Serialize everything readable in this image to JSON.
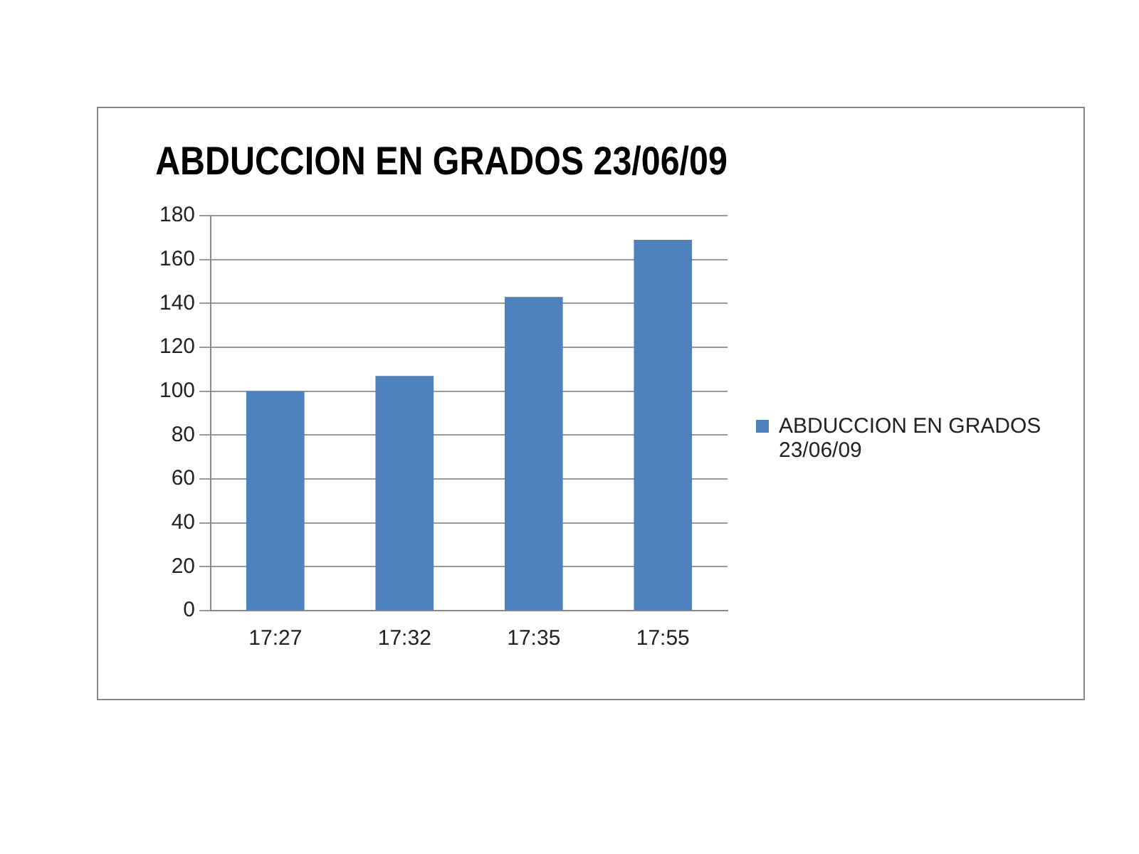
{
  "chart_data": {
    "type": "bar",
    "title": "ABDUCCION EN GRADOS 23/06/09",
    "categories": [
      "17:27",
      "17:32",
      "17:35",
      "17:55"
    ],
    "series": [
      {
        "name": "ABDUCCION EN GRADOS 23/06/09",
        "color": "#4f81bd",
        "values": [
          100,
          107,
          143,
          169
        ]
      }
    ],
    "ylim": [
      0,
      180
    ],
    "yticks": [
      0,
      20,
      40,
      60,
      80,
      100,
      120,
      140,
      160,
      180
    ],
    "grid": "y",
    "legend": "right"
  }
}
